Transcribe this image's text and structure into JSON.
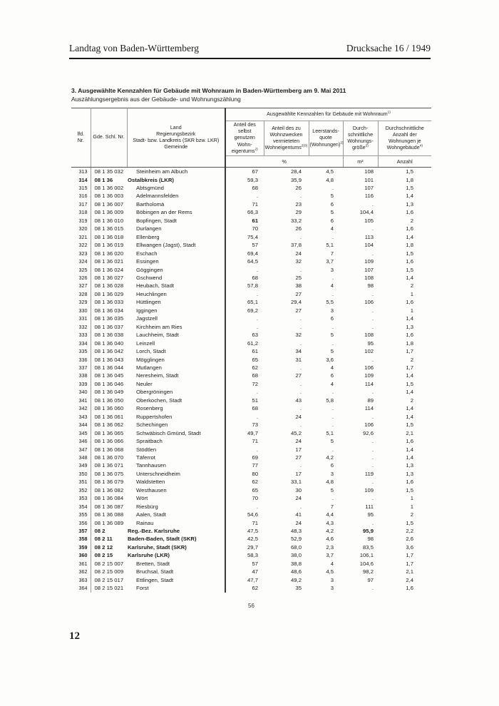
{
  "header": {
    "left": "Landtag von Baden-Württemberg",
    "right": "Drucksache 16 / 1949"
  },
  "title": "3. Ausgewählte Kennzahlen für Gebäude mit Wohnraum in Baden-Württemberg am 9. Mai 2011",
  "subtitle": "Auszählungsergebnis aus der Gebäude- und Wohnungszählung",
  "table": {
    "col_lfd": "lfd.\nNr.",
    "col_gde": "Gde. Schl. Nr.",
    "col_land": "Land\nRegierungsbezirk\nStadt- bzw. Landkreis (SKR bzw. LKR)\nGemeinde",
    "span_header": "Ausgewählte Kennzahlen für Gebäude mit Wohnraum",
    "span_header_sup": "1)",
    "subcols": [
      {
        "label": "Anteil des selbst\ngenutzen Wohn-\neigentums",
        "sup": "2)"
      },
      {
        "label": "Anteil des zu\nWohnzwecken\nvermieteten\nWohneigentums",
        "sup": "2)3)"
      },
      {
        "label": "Leerstands-\nquote\n(Wohnungen)",
        "sup": "2)"
      },
      {
        "label": "Durch-\nschnittliche\nWohnungs-\ngröße",
        "sup": "2)"
      },
      {
        "label": "Durchschnittliche\nAnzahl der\nWohnungen je\nWohngebäude",
        "sup": "4)"
      }
    ],
    "units": {
      "percent": "%",
      "sqm": "m²",
      "count": "Anzahl"
    },
    "rows": [
      {
        "nr": "313",
        "code": "08 1 35 032",
        "name": "Steinheim am Albuch",
        "bold": false,
        "v": [
          "67",
          "28,4",
          "4,5",
          "108",
          "1,5"
        ]
      },
      {
        "nr": "314",
        "code": "08 1 36",
        "name": "Ostalbkreis (LKR)",
        "bold": true,
        "v": [
          "59,3",
          "35,9",
          "4,8",
          "101",
          "1,8"
        ]
      },
      {
        "nr": "315",
        "code": "08 1 36 002",
        "name": "Abtsgmünd",
        "bold": false,
        "v": [
          "68",
          "26",
          ".",
          "107",
          "1,5"
        ]
      },
      {
        "nr": "316",
        "code": "08 1 36 003",
        "name": "Adelmannsfelden",
        "bold": false,
        "v": [
          ".",
          ".",
          "5",
          "116",
          "1,4"
        ]
      },
      {
        "nr": "317",
        "code": "08 1 36 007",
        "name": "Bartholomä",
        "bold": false,
        "v": [
          "71",
          "23",
          "6",
          ".",
          "1,3"
        ]
      },
      {
        "nr": "318",
        "code": "08 1 36 009",
        "name": "Böbingen an der Rems",
        "bold": false,
        "v": [
          "66,3",
          "29",
          "5",
          "104,4",
          "1,6"
        ]
      },
      {
        "nr": "319",
        "code": "08 1 36 010",
        "name": "Bopfingen, Stadt",
        "bold": false,
        "strong": [
          0
        ],
        "v": [
          "61",
          "33,2",
          "6",
          "105",
          "2"
        ]
      },
      {
        "nr": "320",
        "code": "08 1 36 015",
        "name": "Durlangen",
        "bold": false,
        "v": [
          "70",
          "26",
          "4",
          ".",
          "1,6"
        ]
      },
      {
        "nr": "321",
        "code": "08 1 36 018",
        "name": "Ellenberg",
        "bold": false,
        "v": [
          "75,4",
          ".",
          ".",
          "113",
          "1,4"
        ]
      },
      {
        "nr": "322",
        "code": "08 1 36 019",
        "name": "Ellwangen (Jagst), Stadt",
        "bold": false,
        "v": [
          "57",
          "37,8",
          "5,1",
          "104",
          "1,8"
        ]
      },
      {
        "nr": "323",
        "code": "08 1 36 020",
        "name": "Eschach",
        "bold": false,
        "v": [
          "69,4",
          "24",
          "7",
          ".",
          "1,5"
        ]
      },
      {
        "nr": "324",
        "code": "08 1 36 021",
        "name": "Essingen",
        "bold": false,
        "v": [
          "64,5",
          "32",
          "3,7",
          "109",
          "1,6"
        ]
      },
      {
        "nr": "325",
        "code": "08 1 36 024",
        "name": "Göggingen",
        "bold": false,
        "v": [
          ".",
          ".",
          "3",
          "107",
          "1,5"
        ]
      },
      {
        "nr": "326",
        "code": "08 1 36 027",
        "name": "Gschwend",
        "bold": false,
        "v": [
          "68",
          "25",
          ".",
          "108",
          "1,4"
        ]
      },
      {
        "nr": "327",
        "code": "08 1 36 028",
        "name": "Heubach, Stadt",
        "bold": false,
        "v": [
          "57,8",
          "38",
          "4",
          "98",
          "2"
        ]
      },
      {
        "nr": "328",
        "code": "08 1 36 029",
        "name": "Heuchlingen",
        "bold": false,
        "v": [
          ".",
          "27",
          ".",
          ".",
          "1"
        ]
      },
      {
        "nr": "329",
        "code": "08 1 36 033",
        "name": "Hüttlingen",
        "bold": false,
        "v": [
          "65,1",
          "29,4",
          "5,5",
          "106",
          "1,6"
        ]
      },
      {
        "nr": "330",
        "code": "08 1 36 034",
        "name": "Iggingen",
        "bold": false,
        "v": [
          "69,2",
          "27",
          "3",
          ".",
          "1"
        ]
      },
      {
        "nr": "331",
        "code": "08 1 36 035",
        "name": "Jagstzell",
        "bold": false,
        "v": [
          ".",
          ".",
          "6",
          ".",
          "1,4"
        ]
      },
      {
        "nr": "332",
        "code": "08 1 36 037",
        "name": "Kirchheim am Ries",
        "bold": false,
        "v": [
          ".",
          ".",
          ".",
          ".",
          "1,3"
        ]
      },
      {
        "nr": "333",
        "code": "08 1 36 038",
        "name": "Lauchheim, Stadt",
        "bold": false,
        "v": [
          "63",
          "32",
          "5",
          "108",
          "1,6"
        ]
      },
      {
        "nr": "334",
        "code": "08 1 36 040",
        "name": "Leinzell",
        "bold": false,
        "v": [
          "61,2",
          ".",
          ".",
          "95",
          "1,8"
        ]
      },
      {
        "nr": "335",
        "code": "08 1 36 042",
        "name": "Lorch, Stadt",
        "bold": false,
        "v": [
          "61",
          "34",
          "5",
          "102",
          "1,7"
        ]
      },
      {
        "nr": "336",
        "code": "08 1 36 043",
        "name": "Mögglingen",
        "bold": false,
        "v": [
          "65",
          "31",
          "3,6",
          ".",
          "2"
        ]
      },
      {
        "nr": "337",
        "code": "08 1 36 044",
        "name": "Mutlangen",
        "bold": false,
        "v": [
          "62",
          ".",
          "4",
          "106",
          "1,7"
        ]
      },
      {
        "nr": "338",
        "code": "08 1 36 045",
        "name": "Neresheim, Stadt",
        "bold": false,
        "v": [
          "68",
          "27",
          "6",
          "109",
          "1,4"
        ]
      },
      {
        "nr": "339",
        "code": "08 1 36 046",
        "name": "Neuler",
        "bold": false,
        "v": [
          "72",
          ".",
          "4",
          "114",
          "1,5"
        ]
      },
      {
        "nr": "340",
        "code": "08 1 36 049",
        "name": "Obergröningen",
        "bold": false,
        "v": [
          ".",
          ".",
          ".",
          ".",
          "1,4"
        ]
      },
      {
        "nr": "341",
        "code": "08 1 36 050",
        "name": "Oberkochen, Stadt",
        "bold": false,
        "v": [
          "51",
          "43",
          "5,8",
          "89",
          "2"
        ]
      },
      {
        "nr": "342",
        "code": "08 1 36 060",
        "name": "Rosenberg",
        "bold": false,
        "v": [
          "68",
          ".",
          ".",
          "114",
          "1,4"
        ]
      },
      {
        "nr": "343",
        "code": "08 1 36 061",
        "name": "Ruppertshofen",
        "bold": false,
        "v": [
          ".",
          "24",
          ".",
          ".",
          "1,4"
        ]
      },
      {
        "nr": "344",
        "code": "08 1 36 062",
        "name": "Schechingen",
        "bold": false,
        "v": [
          "73",
          ".",
          ".",
          "106",
          "1,5"
        ]
      },
      {
        "nr": "345",
        "code": "08 1 36 065",
        "name": "Schwäbisch Gmünd, Stadt",
        "bold": false,
        "v": [
          "49,7",
          "45,2",
          "5,1",
          "92,6",
          "2,1"
        ]
      },
      {
        "nr": "346",
        "code": "08 1 36 066",
        "name": "Spraitbach",
        "bold": false,
        "v": [
          "71",
          "24",
          "5",
          ".",
          "1,6"
        ]
      },
      {
        "nr": "347",
        "code": "08 1 36 068",
        "name": "Stödtlen",
        "bold": false,
        "v": [
          ".",
          "17",
          ".",
          ".",
          "1,4"
        ]
      },
      {
        "nr": "348",
        "code": "08 1 36 070",
        "name": "Täferrot",
        "bold": false,
        "v": [
          "69",
          "27",
          "4,2",
          ".",
          "1,4"
        ]
      },
      {
        "nr": "349",
        "code": "08 1 36 071",
        "name": "Tannhausen",
        "bold": false,
        "v": [
          "77",
          ".",
          "6",
          ".",
          "1,3"
        ]
      },
      {
        "nr": "350",
        "code": "08 1 36 075",
        "name": "Unterschneidheim",
        "bold": false,
        "v": [
          "80",
          "17",
          "3",
          "119",
          "1,3"
        ]
      },
      {
        "nr": "351",
        "code": "08 1 36 079",
        "name": "Waldstetten",
        "bold": false,
        "v": [
          "62",
          "33,1",
          "4,8",
          ".",
          "1,6"
        ]
      },
      {
        "nr": "352",
        "code": "08 1 36 082",
        "name": "Westhausen",
        "bold": false,
        "v": [
          "65",
          "30",
          "5",
          "109",
          "1,5"
        ]
      },
      {
        "nr": "353",
        "code": "08 1 36 084",
        "name": "Wört",
        "bold": false,
        "v": [
          "70",
          "24",
          ".",
          ".",
          "1"
        ]
      },
      {
        "nr": "354",
        "code": "08 1 36 087",
        "name": "Riesbürg",
        "bold": false,
        "v": [
          ".",
          ".",
          "7",
          "111",
          "1"
        ]
      },
      {
        "nr": "355",
        "code": "08 1 36 088",
        "name": "Aalen, Stadt",
        "bold": false,
        "v": [
          "54,6",
          "41",
          "4,4",
          "95",
          "2"
        ]
      },
      {
        "nr": "356",
        "code": "08 1 36 089",
        "name": "Rainau",
        "bold": false,
        "v": [
          "71",
          "24",
          "4,3",
          ".",
          "1,5"
        ]
      },
      {
        "nr": "357",
        "code": "08 2",
        "name": "Reg.-Bez. Karlsruhe",
        "bold": true,
        "strong": [
          3
        ],
        "v": [
          "47,5",
          "48,3",
          "4,2",
          "95,9",
          "2,2"
        ]
      },
      {
        "nr": "358",
        "code": "08 2 11",
        "name": "Baden-Baden, Stadt (SKR)",
        "bold": true,
        "v": [
          "42,5",
          "52,9",
          "4,6",
          "98",
          "2,6"
        ]
      },
      {
        "nr": "359",
        "code": "08 2 12",
        "name": "Karlsruhe, Stadt (SKR)",
        "bold": true,
        "v": [
          "29,7",
          "68,0",
          "2,3",
          "83,5",
          "3,6"
        ]
      },
      {
        "nr": "360",
        "code": "08 2 15",
        "name": "Karlsruhe (LKR)",
        "bold": true,
        "v": [
          "58,3",
          "38,0",
          "3,7",
          "106,1",
          "1,7"
        ]
      },
      {
        "nr": "361",
        "code": "08 2 15 007",
        "name": "Bretten, Stadt",
        "bold": false,
        "v": [
          "57",
          "38,8",
          "4",
          "104,6",
          "1,7"
        ]
      },
      {
        "nr": "362",
        "code": "08 2 15 009",
        "name": "Bruchsal, Stadt",
        "bold": false,
        "v": [
          "47",
          "48,6",
          "4,5",
          "98,2",
          "2,1"
        ]
      },
      {
        "nr": "363",
        "code": "08 2 15 017",
        "name": "Ettlingen, Stadt",
        "bold": false,
        "v": [
          "47,7",
          "49,2",
          "3",
          "97",
          "2,4"
        ]
      },
      {
        "nr": "364",
        "code": "08 2 15 021",
        "name": "Forst",
        "bold": false,
        "v": [
          "62",
          "35",
          "3",
          ".",
          "1,6"
        ]
      }
    ]
  },
  "footer": {
    "page_center": "56",
    "page_corner": "12"
  }
}
